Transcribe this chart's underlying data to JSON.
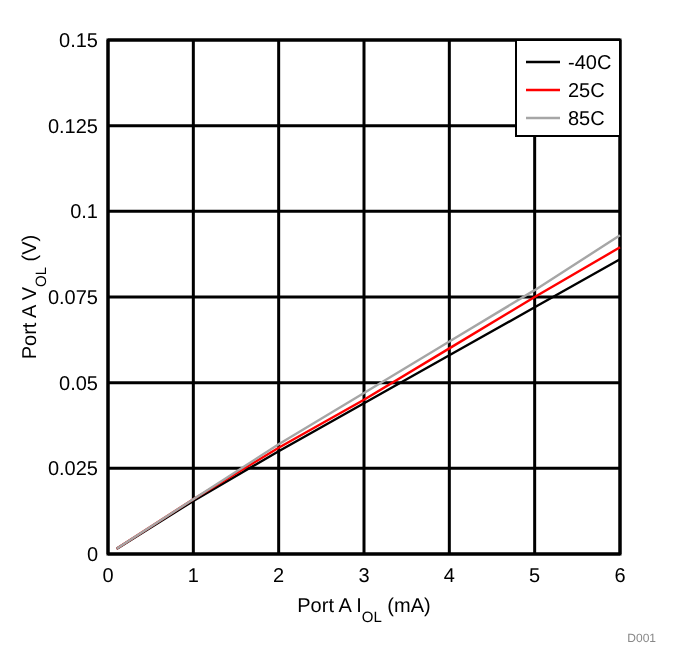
{
  "chart_data": {
    "type": "line",
    "xlabel": "Port A I$_{OL}$ (mA)",
    "ylabel": "Port A V$_{OL}$ (V)",
    "x": [
      0.1,
      1,
      2,
      3,
      4,
      5,
      6
    ],
    "series": [
      {
        "name": "-40C",
        "color": "#000000",
        "values": [
          0.0015,
          0.0155,
          0.03,
          0.044,
          0.058,
          0.072,
          0.086
        ]
      },
      {
        "name": "25C",
        "color": "#ff0000",
        "values": [
          0.0015,
          0.016,
          0.031,
          0.045,
          0.06,
          0.075,
          0.0895
        ]
      },
      {
        "name": "85C",
        "color": "#a6a6a6",
        "values": [
          0.0015,
          0.016,
          0.032,
          0.047,
          0.062,
          0.077,
          0.093
        ]
      }
    ],
    "xlim": [
      0,
      6
    ],
    "xticks": [
      0,
      1,
      2,
      3,
      4,
      5,
      6
    ],
    "ylim": [
      0,
      0.15
    ],
    "yticks": [
      0,
      0.025,
      0.05,
      0.075,
      0.1,
      0.125,
      0.15
    ],
    "grid": true,
    "legend": "top right",
    "annotations": [
      "D001"
    ]
  }
}
